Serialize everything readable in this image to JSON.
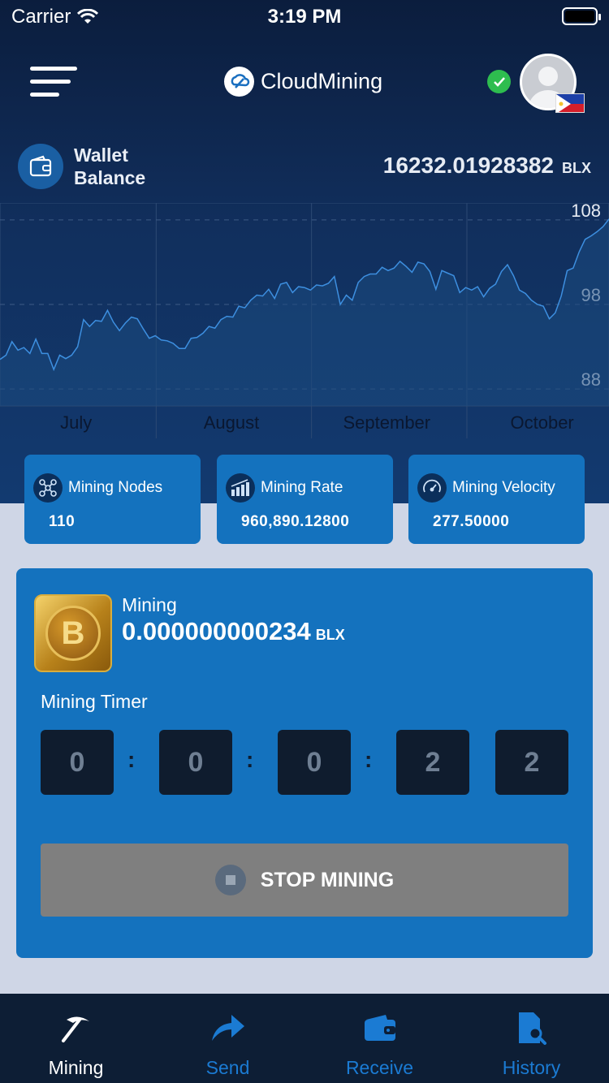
{
  "status_bar": {
    "carrier": "Carrier",
    "time": "3:19 PM"
  },
  "header": {
    "app_name": "CloudMining"
  },
  "wallet": {
    "label": "Wallet Balance",
    "amount": "16232.01928382",
    "unit": "BLX"
  },
  "chart_data": {
    "type": "line",
    "x_labels": [
      "July",
      "August",
      "September",
      "October"
    ],
    "y_ticks": [
      108,
      98,
      88
    ],
    "ylim": [
      86,
      110
    ],
    "grid": true,
    "values": [
      91.5,
      92.0,
      93.6,
      92.6,
      92.9,
      92.2,
      93.9,
      92.2,
      92.2,
      90.3,
      92.0,
      91.6,
      92.0,
      93.0,
      96.2,
      95.4,
      96.1,
      96.0,
      97.3,
      95.9,
      94.9,
      95.8,
      96.5,
      96.3,
      95.1,
      94.0,
      94.3,
      93.8,
      93.7,
      93.4,
      92.8,
      92.8,
      94.0,
      94.1,
      94.6,
      95.4,
      95.2,
      96.2,
      96.6,
      96.5,
      97.8,
      97.6,
      98.5,
      99.1,
      99.0,
      99.8,
      98.7,
      100.4,
      100.6,
      99.4,
      100.1,
      100.0,
      99.7,
      100.3,
      100.2,
      100.5,
      101.3,
      98.0,
      99.1,
      98.5,
      100.6,
      101.3,
      101.6,
      101.6,
      102.4,
      102.0,
      102.3,
      103.1,
      102.5,
      101.8,
      103.0,
      102.8,
      101.9,
      99.8,
      102.0,
      101.7,
      101.4,
      99.4,
      100.0,
      99.7,
      100.1,
      98.9,
      99.9,
      100.4,
      101.9,
      102.7,
      101.4,
      99.7,
      99.3,
      98.5,
      98.0,
      97.8,
      96.3,
      97.0,
      99.0,
      102.0,
      102.3,
      104.2,
      105.7,
      106.1,
      106.6,
      107.2,
      108.1
    ],
    "line_color": "#3d8fe0"
  },
  "stats": [
    {
      "label": "Mining Nodes",
      "value": "110",
      "icon": "nodes-icon"
    },
    {
      "label": "Mining Rate",
      "value": "960,890.12800",
      "icon": "bar-chart-icon"
    },
    {
      "label": "Mining Velocity",
      "value": "277.50000",
      "icon": "speedometer-icon"
    }
  ],
  "mining": {
    "label": "Mining",
    "amount": "0.000000000234",
    "unit": "BLX",
    "timer_label": "Mining Timer",
    "timer_digits": [
      "0",
      "0",
      "0",
      "2",
      "2"
    ],
    "separator": ":",
    "stop_label": "STOP MINING"
  },
  "tabs": [
    {
      "label": "Mining",
      "icon": "pickaxe-icon",
      "active": true
    },
    {
      "label": "Send",
      "icon": "send-arrow-icon",
      "active": false
    },
    {
      "label": "Receive",
      "icon": "wallet-icon",
      "active": false
    },
    {
      "label": "History",
      "icon": "history-search-icon",
      "active": false
    }
  ],
  "colors": {
    "accent": "#1472be",
    "tab_inactive": "#1b7bd3",
    "stop_button": "#7f7f7f",
    "verified": "#2ebd4f"
  }
}
